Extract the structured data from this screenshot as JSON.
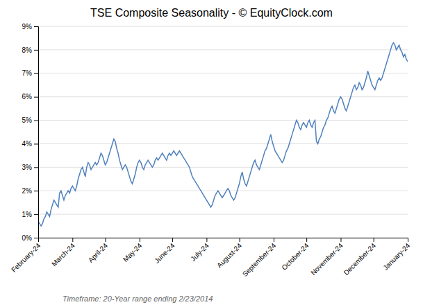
{
  "chart_data": {
    "type": "line",
    "title": "TSE Composite Seasonality - © EquityClock.com",
    "subtitle": "Timeframe: 20-Year range ending 2/23/2014",
    "color": "#4f81bd",
    "grid": true,
    "ylim": [
      0.0,
      0.09
    ],
    "yticks": [
      {
        "value": 0.0,
        "label": "0%"
      },
      {
        "value": 0.01,
        "label": "1%"
      },
      {
        "value": 0.02,
        "label": "2%"
      },
      {
        "value": 0.03,
        "label": "3%"
      },
      {
        "value": 0.04,
        "label": "4%"
      },
      {
        "value": 0.05,
        "label": "5%"
      },
      {
        "value": 0.06,
        "label": "6%"
      },
      {
        "value": 0.07,
        "label": "7%"
      },
      {
        "value": 0.08,
        "label": "8%"
      },
      {
        "value": 0.09,
        "label": "9%"
      }
    ],
    "categories": [
      "February-24",
      null,
      null,
      null,
      null,
      null,
      null,
      null,
      null,
      null,
      null,
      null,
      null,
      null,
      null,
      null,
      null,
      null,
      null,
      null,
      null,
      null,
      null,
      null,
      "March-24",
      null,
      null,
      null,
      null,
      null,
      null,
      null,
      null,
      null,
      null,
      null,
      null,
      null,
      null,
      null,
      null,
      null,
      null,
      null,
      null,
      null,
      null,
      "April-24",
      null,
      null,
      null,
      null,
      null,
      null,
      null,
      null,
      null,
      null,
      null,
      null,
      null,
      null,
      null,
      null,
      null,
      null,
      null,
      null,
      null,
      null,
      null,
      "May-24",
      null,
      null,
      null,
      null,
      null,
      null,
      null,
      null,
      null,
      null,
      null,
      null,
      null,
      null,
      null,
      null,
      null,
      null,
      null,
      null,
      null,
      null,
      "June-24",
      null,
      null,
      null,
      null,
      null,
      null,
      null,
      null,
      null,
      null,
      null,
      null,
      null,
      null,
      null,
      null,
      null,
      null,
      null,
      null,
      null,
      null,
      null,
      "July-24",
      null,
      null,
      null,
      null,
      null,
      null,
      null,
      null,
      null,
      null,
      null,
      null,
      null,
      null,
      null,
      null,
      null,
      null,
      null,
      null,
      null,
      null,
      "August-24",
      null,
      null,
      null,
      null,
      null,
      null,
      null,
      null,
      null,
      null,
      null,
      null,
      null,
      null,
      null,
      null,
      null,
      null,
      null,
      null,
      null,
      null,
      null,
      "September-24",
      null,
      null,
      null,
      null,
      null,
      null,
      null,
      null,
      null,
      null,
      null,
      null,
      null,
      null,
      null,
      null,
      null,
      null,
      null,
      null,
      null,
      null,
      "October-24",
      null,
      null,
      null,
      null,
      null,
      null,
      null,
      null,
      null,
      null,
      null,
      null,
      null,
      null,
      null,
      null,
      null,
      null,
      null,
      null,
      null,
      null,
      null,
      "November-24",
      null,
      null,
      null,
      null,
      null,
      null,
      null,
      null,
      null,
      null,
      null,
      null,
      null,
      null,
      null,
      null,
      null,
      null,
      null,
      null,
      null,
      null,
      "December-24",
      null,
      null,
      null,
      null,
      null,
      null,
      null,
      null,
      null,
      null,
      null,
      null,
      null,
      null,
      null,
      null,
      null,
      null,
      null,
      null,
      null,
      null,
      null,
      "January-24"
    ],
    "values": [
      0.007,
      0.006,
      0.005,
      0.006,
      0.008,
      0.009,
      0.011,
      0.01,
      0.009,
      0.012,
      0.014,
      0.016,
      0.015,
      0.014,
      0.013,
      0.019,
      0.02,
      0.018,
      0.016,
      0.018,
      0.019,
      0.02,
      0.019,
      0.021,
      0.022,
      0.021,
      0.02,
      0.022,
      0.025,
      0.027,
      0.029,
      0.03,
      0.028,
      0.026,
      0.03,
      0.032,
      0.031,
      0.029,
      0.03,
      0.031,
      0.032,
      0.031,
      0.032,
      0.034,
      0.036,
      0.035,
      0.033,
      0.031,
      0.032,
      0.034,
      0.036,
      0.038,
      0.04,
      0.042,
      0.041,
      0.038,
      0.036,
      0.033,
      0.031,
      0.029,
      0.03,
      0.031,
      0.03,
      0.028,
      0.026,
      0.024,
      0.023,
      0.025,
      0.027,
      0.03,
      0.032,
      0.033,
      0.032,
      0.03,
      0.029,
      0.031,
      0.032,
      0.033,
      0.032,
      0.031,
      0.03,
      0.031,
      0.033,
      0.034,
      0.033,
      0.034,
      0.035,
      0.036,
      0.035,
      0.034,
      0.033,
      0.035,
      0.036,
      0.035,
      0.036,
      0.037,
      0.036,
      0.035,
      0.036,
      0.037,
      0.036,
      0.035,
      0.034,
      0.033,
      0.032,
      0.031,
      0.03,
      0.028,
      0.026,
      0.025,
      0.024,
      0.023,
      0.022,
      0.021,
      0.02,
      0.019,
      0.018,
      0.017,
      0.016,
      0.015,
      0.014,
      0.013,
      0.014,
      0.016,
      0.018,
      0.019,
      0.02,
      0.019,
      0.018,
      0.017,
      0.018,
      0.019,
      0.02,
      0.021,
      0.02,
      0.018,
      0.017,
      0.016,
      0.017,
      0.019,
      0.021,
      0.023,
      0.026,
      0.028,
      0.025,
      0.023,
      0.022,
      0.024,
      0.026,
      0.028,
      0.03,
      0.032,
      0.033,
      0.031,
      0.03,
      0.029,
      0.031,
      0.033,
      0.035,
      0.037,
      0.038,
      0.04,
      0.042,
      0.044,
      0.041,
      0.039,
      0.037,
      0.036,
      0.035,
      0.034,
      0.033,
      0.032,
      0.033,
      0.035,
      0.037,
      0.038,
      0.04,
      0.042,
      0.044,
      0.046,
      0.048,
      0.05,
      0.049,
      0.047,
      0.046,
      0.048,
      0.049,
      0.048,
      0.047,
      0.049,
      0.05,
      0.048,
      0.047,
      0.049,
      0.05,
      0.041,
      0.04,
      0.042,
      0.043,
      0.045,
      0.047,
      0.048,
      0.05,
      0.051,
      0.053,
      0.055,
      0.056,
      0.054,
      0.053,
      0.055,
      0.057,
      0.059,
      0.06,
      0.059,
      0.057,
      0.055,
      0.054,
      0.056,
      0.058,
      0.06,
      0.062,
      0.064,
      0.065,
      0.063,
      0.064,
      0.066,
      0.065,
      0.063,
      0.064,
      0.066,
      0.068,
      0.071,
      0.069,
      0.067,
      0.065,
      0.064,
      0.063,
      0.065,
      0.067,
      0.068,
      0.067,
      0.068,
      0.07,
      0.072,
      0.074,
      0.076,
      0.078,
      0.08,
      0.082,
      0.083,
      0.082,
      0.08,
      0.081,
      0.082,
      0.08,
      0.079,
      0.077,
      0.078,
      0.076,
      0.075
    ]
  }
}
